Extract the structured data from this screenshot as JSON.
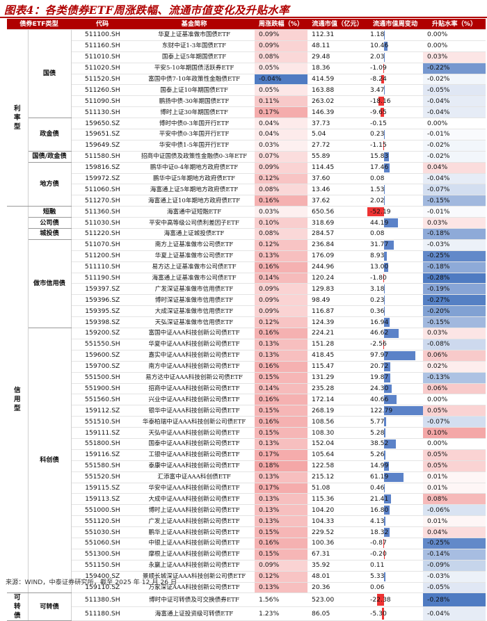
{
  "title": "图表4：各类债券ETF周涨跌幅、流通市值变化及升贴水率",
  "headers": [
    "债券ETF类型",
    "代码",
    "基金简称",
    "周涨跌幅（%）",
    "流通市值（亿元）",
    "流通市值周变动",
    "升贴水率（%）"
  ],
  "source": "来源：WIND，中泰证券研究所，截至 2025 年 12 月 26 日",
  "rows": [
    {
      "l1": "利率型",
      "l2": "国债",
      "code": "511100.SH",
      "name": "华夏上证基准做市国债ETF",
      "chg": "0.09%",
      "cap": "112.31",
      "dcap": "1.18",
      "prem": "0.00%"
    },
    {
      "l1": "利率型",
      "l2": "国债",
      "code": "511160.SH",
      "name": "东财中证1-3年国债ETF",
      "chg": "0.09%",
      "cap": "48.11",
      "dcap": "10.46",
      "prem": "0.00%"
    },
    {
      "l1": "利率型",
      "l2": "国债",
      "code": "511010.SH",
      "name": "国泰上证5年期国债ETF",
      "chg": "0.08%",
      "cap": "29.48",
      "dcap": "2.03",
      "prem": "0.03%"
    },
    {
      "l1": "利率型",
      "l2": "国债",
      "code": "511020.SH",
      "name": "平安5-10年期国债活跃券ETF",
      "chg": "0.05%",
      "cap": "18.36",
      "dcap": "-1.09",
      "prem": "-0.22%"
    },
    {
      "l1": "利率型",
      "l2": "国债",
      "code": "511520.SH",
      "name": "富国中债7-10年政策性金融债ETF",
      "chg": "-0.04%",
      "cap": "414.59",
      "dcap": "-8.24",
      "prem": "-0.02%"
    },
    {
      "l1": "利率型",
      "l2": "国债",
      "code": "511260.SH",
      "name": "国泰上证10年期国债ETF",
      "chg": "0.05%",
      "cap": "163.88",
      "dcap": "3.47",
      "prem": "-0.05%"
    },
    {
      "l1": "利率型",
      "l2": "国债",
      "code": "511090.SH",
      "name": "鹏扬中债-30年期国债ETF",
      "chg": "0.11%",
      "cap": "263.02",
      "dcap": "-18.16",
      "prem": "-0.04%"
    },
    {
      "l1": "利率型",
      "l2": "国债",
      "code": "511130.SH",
      "name": "博时上证30年期国债ETF",
      "chg": "0.17%",
      "cap": "146.39",
      "dcap": "-9.65",
      "prem": "-0.04%"
    },
    {
      "l1": "利率型",
      "l2": "政金债",
      "code": "159650.SZ",
      "name": "博时中债0-3年国开行ETF",
      "chg": "0.04%",
      "cap": "37.73",
      "dcap": "-0.15",
      "prem": "0.00%"
    },
    {
      "l1": "利率型",
      "l2": "政金债",
      "code": "159651.SZ",
      "name": "平安中债0-3年国开行ETF",
      "chg": "0.04%",
      "cap": "5.04",
      "dcap": "0.23",
      "prem": "-0.01%"
    },
    {
      "l1": "利率型",
      "l2": "政金债",
      "code": "159649.SZ",
      "name": "华安中债1-5年国开行ETF",
      "chg": "0.03%",
      "cap": "27.72",
      "dcap": "-1.15",
      "prem": "-0.02%"
    },
    {
      "l1": "利率型",
      "l2": "国债/政金债",
      "code": "511580.SH",
      "name": "招商中证国债及政策性金融债0-3年ETF",
      "chg": "0.07%",
      "cap": "55.89",
      "dcap": "15.83",
      "prem": "-0.02%"
    },
    {
      "l1": "利率型",
      "l2": "地方债",
      "code": "159816.SZ",
      "name": "鹏华中证0-4年期地方政府债ETF",
      "chg": "0.09%",
      "cap": "114.45",
      "dcap": "17.46",
      "prem": "0.04%"
    },
    {
      "l1": "利率型",
      "l2": "地方债",
      "code": "159972.SZ",
      "name": "鹏华中证5年期地方政府债ETF",
      "chg": "0.12%",
      "cap": "37.60",
      "dcap": "0.08",
      "prem": "-0.04%"
    },
    {
      "l1": "利率型",
      "l2": "地方债",
      "code": "511060.SH",
      "name": "海富通上证5年期地方政府债ETF",
      "chg": "0.08%",
      "cap": "13.46",
      "dcap": "1.53",
      "prem": "-0.07%"
    },
    {
      "l1": "利率型",
      "l2": "地方债",
      "code": "511270.SH",
      "name": "海富通上证10年期地方政府债ETF",
      "chg": "0.16%",
      "cap": "37.62",
      "dcap": "2.02",
      "prem": "-0.15%"
    },
    {
      "l1": "信用型",
      "l2": "短融",
      "code": "511360.SH",
      "name": "海富通中证短融ETF",
      "chg": "0.03%",
      "cap": "650.56",
      "dcap": "-52.19",
      "prem": "-0.01%"
    },
    {
      "l1": "信用型",
      "l2": "公司债",
      "code": "511030.SH",
      "name": "平安中高等级公司债利差因子ETF",
      "chg": "0.10%",
      "cap": "318.69",
      "dcap": "44.19",
      "prem": "0.03%"
    },
    {
      "l1": "信用型",
      "l2": "城投债",
      "code": "511220.SH",
      "name": "海富通上证城投债ETF",
      "chg": "0.08%",
      "cap": "284.57",
      "dcap": "0.08",
      "prem": "-0.18%"
    },
    {
      "l1": "信用型",
      "l2": "做市信用债",
      "code": "511070.SH",
      "name": "南方上证基准做市公司债ETF",
      "chg": "0.12%",
      "cap": "236.84",
      "dcap": "31.77",
      "prem": "-0.03%"
    },
    {
      "l1": "信用型",
      "l2": "做市信用债",
      "code": "511200.SH",
      "name": "华夏上证基准做市公司债ETF",
      "chg": "0.13%",
      "cap": "176.09",
      "dcap": "8.93",
      "prem": "-0.25%"
    },
    {
      "l1": "信用型",
      "l2": "做市信用债",
      "code": "511110.SH",
      "name": "易方达上证基准做市公司债ETF",
      "chg": "0.16%",
      "cap": "244.96",
      "dcap": "13.00",
      "prem": "-0.18%"
    },
    {
      "l1": "信用型",
      "l2": "做市信用债",
      "code": "511190.SH",
      "name": "海富通上证基准做市公司债ETF",
      "chg": "0.14%",
      "cap": "120.24",
      "dcap": "-1.80",
      "prem": "-0.28%"
    },
    {
      "l1": "信用型",
      "l2": "做市信用债",
      "code": "159397.SZ",
      "name": "广发深证基准做市信用债ETF",
      "chg": "0.09%",
      "cap": "129.83",
      "dcap": "3.18",
      "prem": "-0.19%"
    },
    {
      "l1": "信用型",
      "l2": "做市信用债",
      "code": "159396.SZ",
      "name": "博时深证基准做市信用债ETF",
      "chg": "0.09%",
      "cap": "98.49",
      "dcap": "0.23",
      "prem": "-0.27%"
    },
    {
      "l1": "信用型",
      "l2": "做市信用债",
      "code": "159395.SZ",
      "name": "大成深证基准做市信用债ETF",
      "chg": "0.09%",
      "cap": "116.87",
      "dcap": "0.36",
      "prem": "-0.20%"
    },
    {
      "l1": "信用型",
      "l2": "做市信用债",
      "code": "159398.SZ",
      "name": "天弘深证基准做市信用债ETF",
      "chg": "0.12%",
      "cap": "124.39",
      "dcap": "16.94",
      "prem": "-0.15%"
    },
    {
      "l1": "信用型",
      "l2": "科创债",
      "code": "159200.SZ",
      "name": "富国中证AAA科技创新公司债ETF",
      "chg": "0.16%",
      "cap": "224.21",
      "dcap": "46.62",
      "prem": "0.03%"
    },
    {
      "l1": "信用型",
      "l2": "科创债",
      "code": "551550.SH",
      "name": "华夏中证AAA科技创新公司债ETF",
      "chg": "0.13%",
      "cap": "151.28",
      "dcap": "-2.56",
      "prem": "-0.08%"
    },
    {
      "l1": "信用型",
      "l2": "科创债",
      "code": "159600.SZ",
      "name": "嘉实中证AAA科技创新公司债ETF",
      "chg": "0.13%",
      "cap": "418.45",
      "dcap": "97.97",
      "prem": "0.06%"
    },
    {
      "l1": "信用型",
      "l2": "科创债",
      "code": "159700.SZ",
      "name": "南方中证AAA科技创新公司债ETF",
      "chg": "0.16%",
      "cap": "115.47",
      "dcap": "20.72",
      "prem": "0.02%"
    },
    {
      "l1": "信用型",
      "l2": "科创债",
      "code": "551500.SH",
      "name": "易方达中证AAA科技创新公司债ETF",
      "chg": "0.15%",
      "cap": "131.29",
      "dcap": "19.87",
      "prem": "-0.13%"
    },
    {
      "l1": "信用型",
      "l2": "科创债",
      "code": "551900.SH",
      "name": "招商中证AAA科技创新公司债ETF",
      "chg": "0.14%",
      "cap": "235.28",
      "dcap": "24.30",
      "prem": "0.06%"
    },
    {
      "l1": "信用型",
      "l2": "科创债",
      "code": "551560.SH",
      "name": "兴业中证AAA科技创新公司债ETF",
      "chg": "0.16%",
      "cap": "172.14",
      "dcap": "40.66",
      "prem": "0.00%"
    },
    {
      "l1": "信用型",
      "l2": "科创债",
      "code": "159112.SZ",
      "name": "银华中证AAA科技创新公司债ETF",
      "chg": "0.15%",
      "cap": "268.19",
      "dcap": "122.79",
      "prem": "0.05%"
    },
    {
      "l1": "信用型",
      "l2": "科创债",
      "code": "551510.SH",
      "name": "华泰柏瑞中证AAA科技创新公司债ETF",
      "chg": "0.16%",
      "cap": "108.56",
      "dcap": "5.77",
      "prem": "-0.07%"
    },
    {
      "l1": "信用型",
      "l2": "科创债",
      "code": "159111.SZ",
      "name": "天弘中证AAA科技创新公司债ETF",
      "chg": "0.15%",
      "cap": "108.30",
      "dcap": "5.28",
      "prem": "0.10%"
    },
    {
      "l1": "信用型",
      "l2": "科创债",
      "code": "551800.SH",
      "name": "国泰中证AAA科技创新公司债ETF",
      "chg": "0.13%",
      "cap": "152.04",
      "dcap": "38.52",
      "prem": "0.00%"
    },
    {
      "l1": "信用型",
      "l2": "科创债",
      "code": "159116.SZ",
      "name": "工银中证AAA科技创新公司债ETF",
      "chg": "0.17%",
      "cap": "105.64",
      "dcap": "5.26",
      "prem": "0.05%"
    },
    {
      "l1": "信用型",
      "l2": "科创债",
      "code": "551580.SH",
      "name": "泰康中证AAA科技创新公司债ETF",
      "chg": "0.18%",
      "cap": "122.58",
      "dcap": "14.99",
      "prem": "0.05%"
    },
    {
      "l1": "信用型",
      "l2": "科创债",
      "code": "551520.SH",
      "name": "汇添富中证AAA科创债ETF",
      "chg": "0.13%",
      "cap": "215.12",
      "dcap": "61.19",
      "prem": "0.01%"
    },
    {
      "l1": "信用型",
      "l2": "科创债",
      "code": "159115.SZ",
      "name": "华安中证AAA科技创新公司债ETF",
      "chg": "0.17%",
      "cap": "51.08",
      "dcap": "0.46",
      "prem": "0.01%"
    },
    {
      "l1": "信用型",
      "l2": "科创债",
      "code": "159113.SZ",
      "name": "大成中证AAA科技创新公司债ETF",
      "chg": "0.13%",
      "cap": "115.36",
      "dcap": "21.41",
      "prem": "0.08%"
    },
    {
      "l1": "信用型",
      "l2": "科创债",
      "code": "551000.SH",
      "name": "博时上证AAA科技创新公司债ETF",
      "chg": "0.13%",
      "cap": "104.20",
      "dcap": "16.80",
      "prem": "-0.06%"
    },
    {
      "l1": "信用型",
      "l2": "科创债",
      "code": "551120.SH",
      "name": "广发上证AAA科技创新公司债ETF",
      "chg": "0.13%",
      "cap": "104.33",
      "dcap": "4.13",
      "prem": "0.01%"
    },
    {
      "l1": "信用型",
      "l2": "科创债",
      "code": "551030.SH",
      "name": "鹏华上证AAA科技创新公司债ETF",
      "chg": "0.15%",
      "cap": "229.52",
      "dcap": "18.32",
      "prem": "0.04%"
    },
    {
      "l1": "信用型",
      "l2": "科创债",
      "code": "551060.SH",
      "name": "中银上证AAA科技创新公司债ETF",
      "chg": "0.16%",
      "cap": "100.36",
      "dcap": "-0.87",
      "prem": "-0.25%"
    },
    {
      "l1": "信用型",
      "l2": "科创债",
      "code": "551300.SH",
      "name": "摩根上证AAA科技创新公司债ETF",
      "chg": "0.15%",
      "cap": "67.31",
      "dcap": "-0.20",
      "prem": "-0.14%"
    },
    {
      "l1": "信用型",
      "l2": "科创债",
      "code": "551150.SH",
      "name": "永赢上证AAA科技创新公司债ETF",
      "chg": "0.09%",
      "cap": "35.92",
      "dcap": "0.11",
      "prem": "-0.09%"
    },
    {
      "l1": "信用型",
      "l2": "科创债",
      "code": "159400.SZ",
      "name": "景顺长城深证AAA科技创新公司债ETF",
      "chg": "0.12%",
      "cap": "48.01",
      "dcap": "5.33",
      "prem": "-0.03%"
    },
    {
      "l1": "信用型",
      "l2": "科创债",
      "code": "159110.SZ",
      "name": "万家深证AAA科技创新公司债ETF",
      "chg": "0.13%",
      "cap": "20.36",
      "dcap": "0.06",
      "prem": "-0.05%"
    },
    {
      "l1": "可转债",
      "l2": "可转债",
      "code": "511380.SH",
      "name": "博时中证可转债及可交换债券ETF",
      "chg": "1.56%",
      "cap": "523.00",
      "dcap": "-22.38",
      "prem": "-0.28%"
    },
    {
      "l1": "可转债",
      "l2": "可转债",
      "code": "511180.SH",
      "name": "海富通上证投资级可转债ETF",
      "chg": "1.23%",
      "cap": "86.05",
      "dcap": "-5.30",
      "prem": "-0.04%"
    }
  ],
  "colors": {
    "header_bg": "#b00000",
    "pos_cell": "#f4a7a7",
    "neg_cell": "#4f7bc2",
    "bar_pos": "#5b82c8",
    "bar_neg": "#e33333"
  }
}
